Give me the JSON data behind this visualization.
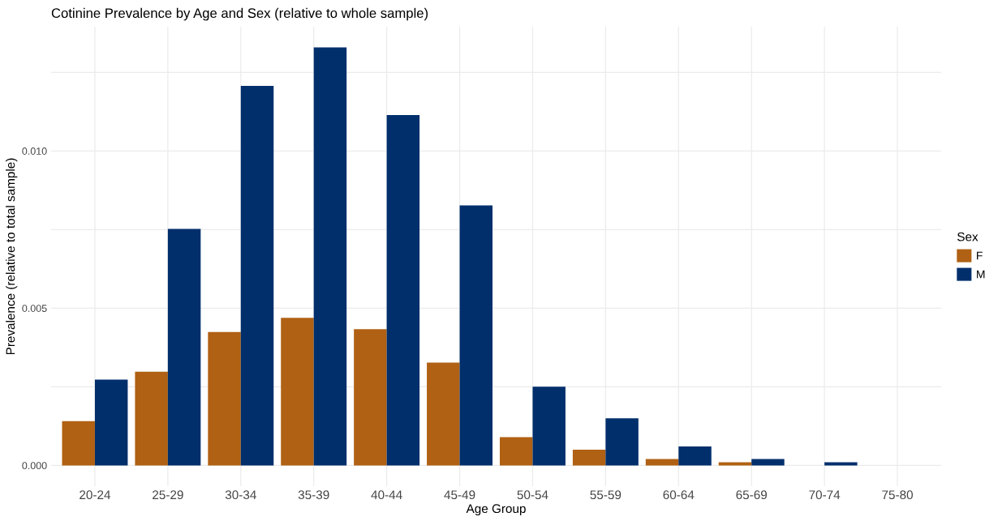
{
  "chart_data": {
    "type": "bar",
    "title": "Cotinine Prevalence by Age and Sex (relative to whole sample)",
    "xlabel": "Age Group",
    "ylabel": "Prevalence (relative to total sample)",
    "legend_title": "Sex",
    "categories": [
      "20-24",
      "25-29",
      "30-34",
      "35-39",
      "40-44",
      "45-49",
      "50-54",
      "55-59",
      "60-64",
      "65-69",
      "70-74",
      "75-80"
    ],
    "series": [
      {
        "name": "F",
        "color": "#b06113",
        "values": [
          0.00141,
          0.00298,
          0.00424,
          0.00469,
          0.00433,
          0.00327,
          0.0009,
          0.0005,
          0.0002,
          0.0001,
          0.0,
          0.0
        ]
      },
      {
        "name": "M",
        "color": "#002f6c",
        "values": [
          0.00273,
          0.00752,
          0.01207,
          0.01329,
          0.01114,
          0.00827,
          0.0025,
          0.0015,
          0.0006,
          0.0002,
          0.0001,
          0.0
        ]
      }
    ],
    "ylim": [
      -0.00066,
      0.01395
    ],
    "yticks": [
      {
        "value": 0,
        "label": "0.000"
      },
      {
        "value": 0.0025,
        "label": null
      },
      {
        "value": 0.005,
        "label": "0.005"
      },
      {
        "value": 0.0075,
        "label": null
      },
      {
        "value": 0.01,
        "label": "0.010"
      },
      {
        "value": 0.0125,
        "label": null
      }
    ],
    "grid": true,
    "legend": "right"
  }
}
